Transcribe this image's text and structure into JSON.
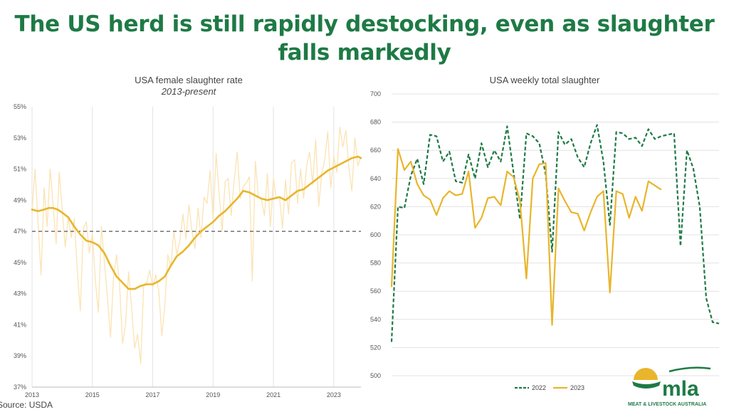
{
  "headline": "The US herd is still rapidly destocking, even as slaughter falls markedly",
  "source": "Source: USDA",
  "logo": {
    "name": "mla",
    "tagline": "MEAT & LIVESTOCK AUSTRALIA"
  },
  "colors": {
    "gold": "#e8b52c",
    "gold_light": "#fbe3b4",
    "green": "#1e7a45",
    "dashed_ref": "#555555",
    "grid": "#e3e3e3"
  },
  "chart_data": [
    {
      "type": "line",
      "title": "USA female slaughter rate",
      "subtitle": "2013-present",
      "x_tick_labels": [
        "2013",
        "2015",
        "2017",
        "2019",
        "2021",
        "2023"
      ],
      "xlim": [
        2013,
        2023.9
      ],
      "y_tick_labels": [
        "37%",
        "39%",
        "41%",
        "43%",
        "45%",
        "47%",
        "49%",
        "51%",
        "53%",
        "55%"
      ],
      "ylim": [
        37,
        55
      ],
      "grid": "vertical",
      "reference_line": {
        "value": 47,
        "style": "dashed"
      },
      "series": [
        {
          "style": "weekly, light",
          "x": [
            2013.0,
            2013.1,
            2013.2,
            2013.3,
            2013.4,
            2013.5,
            2013.6,
            2013.7,
            2013.8,
            2013.9,
            2014.0,
            2014.1,
            2014.2,
            2014.3,
            2014.4,
            2014.5,
            2014.6,
            2014.7,
            2014.8,
            2014.9,
            2015.0,
            2015.1,
            2015.2,
            2015.3,
            2015.4,
            2015.5,
            2015.6,
            2015.7,
            2015.8,
            2015.9,
            2016.0,
            2016.1,
            2016.2,
            2016.3,
            2016.4,
            2016.5,
            2016.6,
            2016.7,
            2016.8,
            2016.9,
            2017.0,
            2017.1,
            2017.2,
            2017.3,
            2017.4,
            2017.5,
            2017.6,
            2017.7,
            2017.8,
            2017.9,
            2018.0,
            2018.1,
            2018.2,
            2018.3,
            2018.4,
            2018.5,
            2018.6,
            2018.7,
            2018.8,
            2018.9,
            2019.0,
            2019.1,
            2019.2,
            2019.3,
            2019.4,
            2019.5,
            2019.6,
            2019.7,
            2019.8,
            2019.9,
            2020.0,
            2020.1,
            2020.2,
            2020.3,
            2020.4,
            2020.5,
            2020.6,
            2020.7,
            2020.8,
            2020.9,
            2021.0,
            2021.1,
            2021.2,
            2021.3,
            2021.4,
            2021.5,
            2021.6,
            2021.7,
            2021.8,
            2021.9,
            2022.0,
            2022.1,
            2022.2,
            2022.3,
            2022.4,
            2022.5,
            2022.6,
            2022.7,
            2022.8,
            2022.9,
            2023.0,
            2023.1,
            2023.2,
            2023.3,
            2023.4,
            2023.5,
            2023.6,
            2023.7,
            2023.8,
            2023.9
          ],
          "y": [
            48.2,
            51.0,
            47.5,
            44.2,
            49.8,
            47.3,
            51.0,
            48.6,
            46.2,
            50.8,
            48.4,
            46.0,
            47.9,
            46.6,
            47.8,
            44.5,
            41.9,
            47.2,
            47.6,
            45.6,
            46.9,
            43.8,
            41.8,
            47.3,
            45.0,
            42.7,
            40.2,
            44.0,
            45.5,
            43.6,
            39.8,
            41.0,
            44.4,
            42.1,
            39.5,
            40.4,
            38.5,
            43.6,
            43.7,
            44.5,
            43.4,
            44.2,
            43.2,
            40.3,
            42.2,
            45.5,
            44.7,
            47.0,
            45.5,
            46.4,
            48.1,
            46.5,
            48.7,
            47.0,
            45.9,
            48.5,
            46.6,
            49.2,
            48.8,
            50.9,
            47.8,
            52.0,
            49.4,
            47.0,
            50.2,
            50.4,
            48.0,
            50.3,
            52.1,
            49.1,
            49.9,
            50.1,
            50.5,
            43.8,
            51.5,
            49.2,
            49.1,
            48.0,
            50.7,
            47.3,
            50.4,
            49.1,
            49.2,
            47.2,
            50.3,
            48.1,
            51.4,
            51.6,
            48.8,
            51.0,
            49.1,
            51.2,
            52.1,
            50.0,
            52.9,
            48.6,
            50.7,
            51.6,
            53.4,
            49.8,
            51.8,
            50.8,
            53.7,
            52.4,
            53.5,
            51.1,
            49.6,
            53.0,
            51.2,
            51.8
          ]
        },
        {
          "style": "smoothed, bold",
          "x": [
            2013.0,
            2013.2,
            2013.4,
            2013.55,
            2013.7,
            2013.85,
            2014.0,
            2014.2,
            2014.4,
            2014.6,
            2014.8,
            2015.0,
            2015.2,
            2015.4,
            2015.6,
            2015.8,
            2016.0,
            2016.2,
            2016.4,
            2016.6,
            2016.8,
            2017.0,
            2017.2,
            2017.4,
            2017.6,
            2017.8,
            2018.0,
            2018.2,
            2018.4,
            2018.6,
            2018.8,
            2019.0,
            2019.2,
            2019.4,
            2019.6,
            2019.8,
            2020.0,
            2020.2,
            2020.4,
            2020.6,
            2020.8,
            2021.0,
            2021.2,
            2021.4,
            2021.6,
            2021.8,
            2022.0,
            2022.2,
            2022.4,
            2022.6,
            2022.8,
            2023.0,
            2023.2,
            2023.4,
            2023.6,
            2023.8,
            2023.9
          ],
          "y": [
            48.4,
            48.3,
            48.4,
            48.5,
            48.5,
            48.4,
            48.2,
            47.9,
            47.3,
            46.8,
            46.4,
            46.3,
            46.1,
            45.6,
            44.8,
            44.1,
            43.7,
            43.3,
            43.3,
            43.5,
            43.6,
            43.6,
            43.8,
            44.1,
            44.8,
            45.4,
            45.7,
            46.1,
            46.6,
            47.0,
            47.3,
            47.6,
            48.0,
            48.3,
            48.7,
            49.1,
            49.6,
            49.5,
            49.3,
            49.1,
            49.0,
            49.1,
            49.2,
            49.0,
            49.3,
            49.6,
            49.7,
            50.0,
            50.3,
            50.6,
            50.9,
            51.1,
            51.3,
            51.5,
            51.7,
            51.8,
            51.7
          ]
        }
      ]
    },
    {
      "type": "line",
      "title": "USA weekly total slaughter",
      "y_tick_labels": [
        "500",
        "520",
        "540",
        "560",
        "580",
        "600",
        "620",
        "640",
        "660",
        "680",
        "700"
      ],
      "ylim": [
        500,
        700
      ],
      "xlim": [
        1,
        52
      ],
      "grid": "horizontal",
      "legend": "bottom",
      "series": [
        {
          "name": "2022",
          "style": "dashed",
          "x": [
            1,
            2,
            3,
            4,
            5,
            6,
            7,
            8,
            9,
            10,
            11,
            12,
            13,
            14,
            15,
            16,
            17,
            18,
            19,
            20,
            21,
            22,
            23,
            24,
            25,
            26,
            27,
            28,
            29,
            30,
            31,
            32,
            33,
            34,
            35,
            36,
            37,
            38,
            39,
            40,
            41,
            42,
            43,
            44,
            45,
            46,
            47,
            48,
            49,
            50,
            51,
            52
          ],
          "y": [
            524,
            620,
            619,
            642,
            654,
            636,
            671,
            670,
            652,
            659,
            638,
            637,
            657,
            640,
            665,
            648,
            660,
            652,
            677,
            644,
            611,
            672,
            670,
            665,
            643,
            588,
            673,
            664,
            668,
            655,
            648,
            665,
            678,
            652,
            607,
            673,
            672,
            668,
            669,
            663,
            675,
            668,
            670,
            671,
            672,
            592,
            660,
            647,
            620,
            555,
            538,
            537
          ]
        },
        {
          "name": "2023",
          "style": "solid",
          "x": [
            1,
            2,
            3,
            4,
            5,
            6,
            7,
            8,
            9,
            10,
            11,
            12,
            13,
            14,
            15,
            16,
            17,
            18,
            19,
            20,
            21,
            22,
            23,
            24,
            25,
            26,
            27,
            28,
            29,
            30,
            31,
            32,
            33,
            34,
            35,
            36,
            37,
            38,
            39,
            40,
            41,
            42,
            43
          ],
          "y": [
            563,
            661,
            646,
            652,
            636,
            628,
            625,
            614,
            626,
            631,
            628,
            629,
            645,
            605,
            612,
            626,
            627,
            621,
            645,
            641,
            624,
            569,
            640,
            650,
            651,
            536,
            633,
            624,
            616,
            615,
            603,
            616,
            627,
            631,
            559,
            631,
            629,
            612,
            627,
            617,
            638,
            635,
            632
          ]
        }
      ]
    }
  ]
}
